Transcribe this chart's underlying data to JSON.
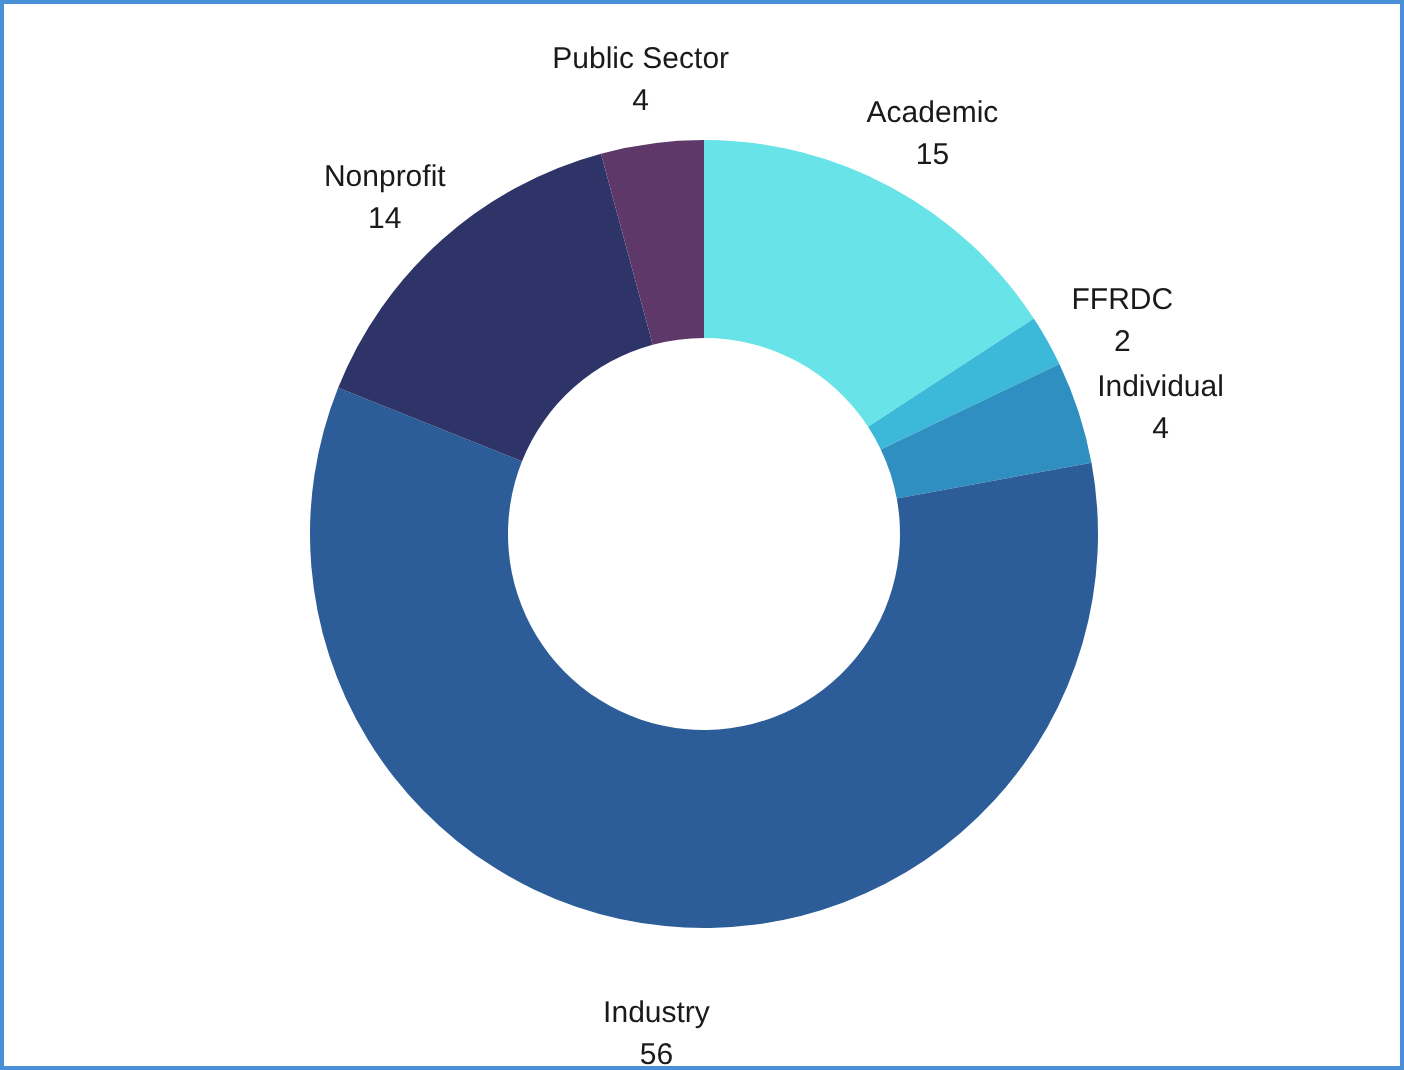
{
  "chart_data": {
    "type": "donut",
    "categories": [
      "Academic",
      "FFRDC",
      "Individual",
      "Industry",
      "Nonprofit",
      "Public Sector"
    ],
    "values": [
      15,
      2,
      4,
      56,
      14,
      4
    ],
    "colors": [
      "#68e4e8",
      "#3cb8d8",
      "#2e8fc0",
      "#2c5d98",
      "#2e3468",
      "#5e3868"
    ],
    "data_labels": true
  }
}
